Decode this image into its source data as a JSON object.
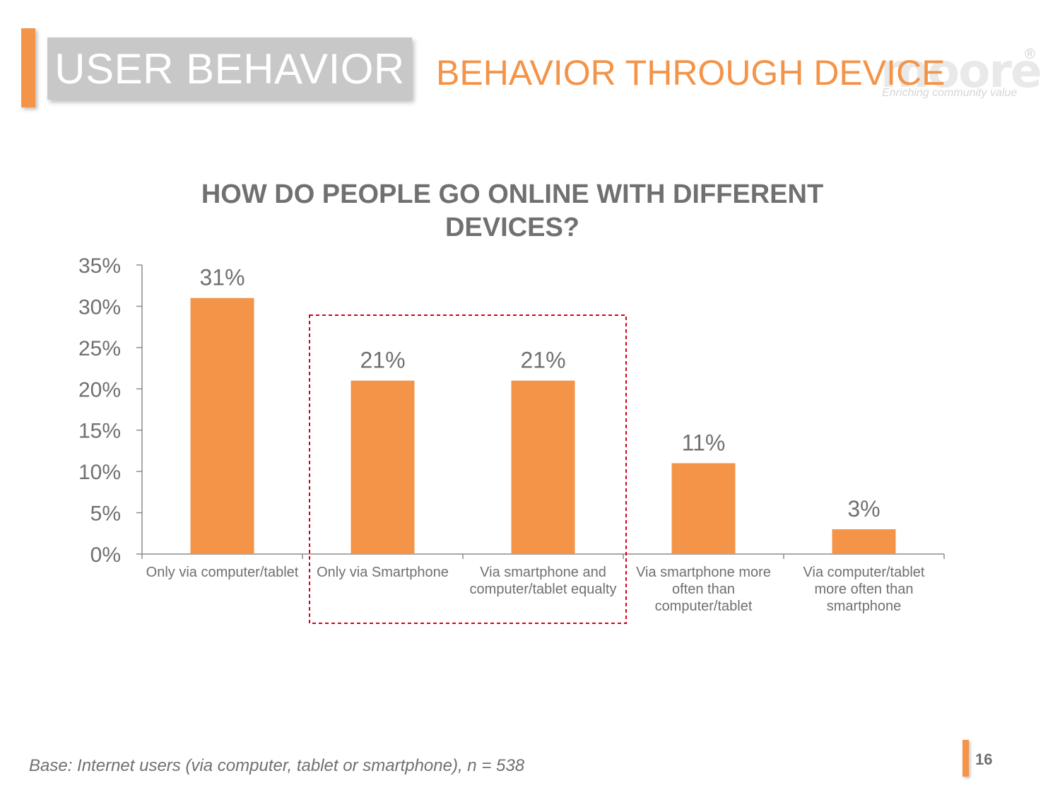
{
  "header": {
    "section_title": "USER BEHAVIOR",
    "subtitle": "BEHAVIOR THROUGH DEVICE"
  },
  "logo": {
    "wordmark": "moore",
    "registered": "®",
    "tagline": "Enriching community value"
  },
  "colors": {
    "accent": "#f39449",
    "bar": "#f39449",
    "text_gray": "#707070",
    "highlight_border": "#d0021b"
  },
  "chart_data": {
    "type": "bar",
    "title": "HOW DO PEOPLE GO ONLINE WITH DIFFERENT DEVICES?",
    "categories": [
      "Only via computer/tablet",
      "Only via Smartphone",
      "Via smartphone and computer/tablet equalty",
      "Via smartphone more often than computer/tablet",
      "Via computer/tablet more often than smartphone"
    ],
    "values": [
      31,
      21,
      21,
      11,
      3
    ],
    "data_labels": [
      "31%",
      "21%",
      "21%",
      "11%",
      "3%"
    ],
    "ylim": [
      0,
      35
    ],
    "yticks": [
      0,
      5,
      10,
      15,
      20,
      25,
      30,
      35
    ],
    "ytick_labels": [
      "0%",
      "5%",
      "10%",
      "15%",
      "20%",
      "25%",
      "30%",
      "35%"
    ],
    "grid": false,
    "highlighted_categories": [
      "Only via Smartphone",
      "Via smartphone and computer/tablet equalty"
    ]
  },
  "footer": {
    "base_note": "Base: Internet users (via computer, tablet or smartphone), n = 538",
    "page_number": "16"
  }
}
